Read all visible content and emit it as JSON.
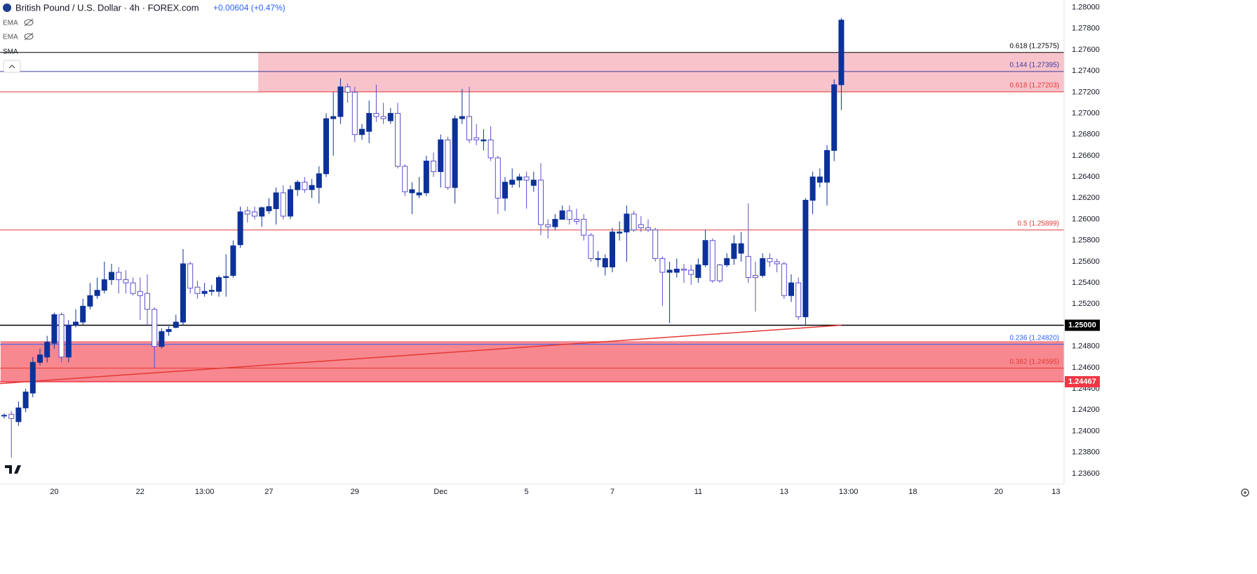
{
  "chart_data": {
    "type": "candlestick",
    "title": "British Pound / U.S. Dollar · 4h · FOREX.com",
    "change": "+0.00604 (+0.47%)",
    "indicators": [
      "EMA",
      "EMA",
      "SMA"
    ],
    "bull_color": "#0c3299",
    "bear_color": "#5b4fcf",
    "ylim": [
      1.235,
      1.2807
    ],
    "yticks": [
      {
        "value": 1.236,
        "label": "1.23600"
      },
      {
        "value": 1.238,
        "label": "1.23800"
      },
      {
        "value": 1.24,
        "label": "1.24000"
      },
      {
        "value": 1.242,
        "label": "1.24200"
      },
      {
        "value": 1.244,
        "label": "1.24400"
      },
      {
        "value": 1.246,
        "label": "1.24600"
      },
      {
        "value": 1.248,
        "label": "1.24800"
      },
      {
        "value": 1.25,
        "label": "1.25000"
      },
      {
        "value": 1.252,
        "label": "1.25200"
      },
      {
        "value": 1.254,
        "label": "1.25400"
      },
      {
        "value": 1.256,
        "label": "1.25600"
      },
      {
        "value": 1.258,
        "label": "1.25800"
      },
      {
        "value": 1.26,
        "label": "1.26000"
      },
      {
        "value": 1.262,
        "label": "1.26200"
      },
      {
        "value": 1.264,
        "label": "1.26400"
      },
      {
        "value": 1.266,
        "label": "1.26600"
      },
      {
        "value": 1.268,
        "label": "1.26800"
      },
      {
        "value": 1.27,
        "label": "1.27000"
      },
      {
        "value": 1.272,
        "label": "1.27200"
      },
      {
        "value": 1.274,
        "label": "1.27400"
      },
      {
        "value": 1.276,
        "label": "1.27600"
      },
      {
        "value": 1.278,
        "label": "1.27800"
      },
      {
        "value": 1.28,
        "label": "1.28000"
      }
    ],
    "categories": [
      null,
      null,
      null,
      null,
      null,
      null,
      null,
      "20",
      null,
      null,
      null,
      null,
      null,
      null,
      null,
      null,
      null,
      null,
      null,
      "22",
      null,
      null,
      null,
      null,
      null,
      null,
      null,
      null,
      "13:00",
      null,
      null,
      null,
      null,
      null,
      null,
      null,
      null,
      "27",
      null,
      null,
      null,
      null,
      null,
      null,
      null,
      null,
      null,
      null,
      null,
      "29",
      null,
      null,
      null,
      null,
      null,
      null,
      null,
      null,
      null,
      null,
      null,
      "Dec",
      null,
      null,
      null,
      null,
      null,
      null,
      null,
      null,
      null,
      null,
      null,
      "5",
      null,
      null,
      null,
      null,
      null,
      null,
      null,
      null,
      null,
      null,
      null,
      "7",
      null,
      null,
      null,
      null,
      null,
      null,
      null,
      null,
      null,
      null,
      null,
      "11",
      null,
      null,
      null,
      null,
      null,
      null,
      null,
      null,
      null,
      null,
      null,
      "13",
      null,
      null,
      null,
      null,
      null,
      null,
      null,
      null,
      "13:00",
      null,
      null,
      null,
      null,
      null,
      null,
      null,
      null,
      "18",
      null,
      null,
      null,
      null,
      null,
      null,
      null,
      null,
      null,
      null,
      null,
      "20",
      null,
      null,
      null,
      null,
      null,
      null,
      null,
      "13",
      null
    ],
    "candles": [
      [
        1.2415,
        1.2417,
        1.2412,
        1.2415
      ],
      [
        1.2416,
        1.2419,
        1.2375,
        1.2412
      ],
      [
        1.2409,
        1.2428,
        1.2405,
        1.2422
      ],
      [
        1.2422,
        1.244,
        1.2418,
        1.2437
      ],
      [
        1.2436,
        1.247,
        1.2432,
        1.2465
      ],
      [
        1.2465,
        1.2478,
        1.2462,
        1.2472
      ],
      [
        1.247,
        1.249,
        1.2465,
        1.2484
      ],
      [
        1.2483,
        1.2512,
        1.2478,
        1.251
      ],
      [
        1.251,
        1.2512,
        1.2465,
        1.247
      ],
      [
        1.247,
        1.2505,
        1.2465,
        1.25
      ],
      [
        1.25,
        1.2515,
        1.2498,
        1.2503
      ],
      [
        1.2503,
        1.2525,
        1.25,
        1.2518
      ],
      [
        1.2518,
        1.254,
        1.2515,
        1.2528
      ],
      [
        1.2528,
        1.2545,
        1.2525,
        1.2533
      ],
      [
        1.2533,
        1.256,
        1.253,
        1.2543
      ],
      [
        1.2543,
        1.2558,
        1.2538,
        1.255
      ],
      [
        1.255,
        1.2555,
        1.253,
        1.2543
      ],
      [
        1.2543,
        1.2552,
        1.253,
        1.254
      ],
      [
        1.254,
        1.2545,
        1.2528,
        1.253
      ],
      [
        1.2532,
        1.2545,
        1.2505,
        1.2528
      ],
      [
        1.253,
        1.2548,
        1.25,
        1.2515
      ],
      [
        1.2515,
        1.2517,
        1.246,
        1.248
      ],
      [
        1.248,
        1.2497,
        1.2478,
        1.2494
      ],
      [
        1.2494,
        1.2499,
        1.249,
        1.2496
      ],
      [
        1.2498,
        1.251,
        1.2497,
        1.2503
      ],
      [
        1.2503,
        1.2572,
        1.25,
        1.2558
      ],
      [
        1.2558,
        1.256,
        1.253,
        1.2535
      ],
      [
        1.2536,
        1.2542,
        1.2525,
        1.253
      ],
      [
        1.253,
        1.254,
        1.2527,
        1.2532
      ],
      [
        1.2532,
        1.2538,
        1.2528,
        1.2533
      ],
      [
        1.2532,
        1.2547,
        1.2527,
        1.2545
      ],
      [
        1.2545,
        1.2567,
        1.2527,
        1.2546
      ],
      [
        1.2547,
        1.258,
        1.2545,
        1.2575
      ],
      [
        1.2576,
        1.2612,
        1.2573,
        1.2607
      ],
      [
        1.2608,
        1.2612,
        1.2597,
        1.2605
      ],
      [
        1.2607,
        1.2612,
        1.26,
        1.2603
      ],
      [
        1.2603,
        1.2612,
        1.2593,
        1.2611
      ],
      [
        1.2608,
        1.262,
        1.2605,
        1.2612
      ],
      [
        1.261,
        1.263,
        1.2595,
        1.2625
      ],
      [
        1.2625,
        1.2632,
        1.26,
        1.2603
      ],
      [
        1.2603,
        1.2632,
        1.26,
        1.2628
      ],
      [
        1.2628,
        1.2637,
        1.2622,
        1.2635
      ],
      [
        1.2635,
        1.264,
        1.2625,
        1.2628
      ],
      [
        1.2628,
        1.2638,
        1.262,
        1.2632
      ],
      [
        1.263,
        1.265,
        1.2615,
        1.2643
      ],
      [
        1.2643,
        1.27,
        1.264,
        1.2695
      ],
      [
        1.2695,
        1.272,
        1.266,
        1.2697
      ],
      [
        1.2697,
        1.2733,
        1.269,
        1.2725
      ],
      [
        1.2725,
        1.2728,
        1.271,
        1.272
      ],
      [
        1.272,
        1.2725,
        1.2673,
        1.268
      ],
      [
        1.268,
        1.269,
        1.2675,
        1.2685
      ],
      [
        1.2683,
        1.2712,
        1.2672,
        1.27
      ],
      [
        1.27,
        1.2727,
        1.2692,
        1.2697
      ],
      [
        1.2697,
        1.271,
        1.269,
        1.2695
      ],
      [
        1.2693,
        1.2705,
        1.269,
        1.27
      ],
      [
        1.27,
        1.271,
        1.2648,
        1.265
      ],
      [
        1.265,
        1.2652,
        1.2622,
        1.2626
      ],
      [
        1.2625,
        1.2635,
        1.2605,
        1.2628
      ],
      [
        1.2623,
        1.264,
        1.262,
        1.2625
      ],
      [
        1.2625,
        1.266,
        1.2622,
        1.2655
      ],
      [
        1.2655,
        1.2663,
        1.264,
        1.2645
      ],
      [
        1.2645,
        1.268,
        1.263,
        1.2675
      ],
      [
        1.2675,
        1.2678,
        1.2628,
        1.263
      ],
      [
        1.263,
        1.2698,
        1.2615,
        1.2695
      ],
      [
        1.2695,
        1.2723,
        1.269,
        1.2697
      ],
      [
        1.2697,
        1.2725,
        1.2672,
        1.2675
      ],
      [
        1.2677,
        1.269,
        1.267,
        1.2675
      ],
      [
        1.2674,
        1.2685,
        1.2665,
        1.2675
      ],
      [
        1.2675,
        1.2688,
        1.2655,
        1.2658
      ],
      [
        1.2658,
        1.266,
        1.2605,
        1.262
      ],
      [
        1.262,
        1.264,
        1.2608,
        1.2635
      ],
      [
        1.2633,
        1.2648,
        1.263,
        1.2637
      ],
      [
        1.2637,
        1.2643,
        1.263,
        1.264
      ],
      [
        1.264,
        1.2645,
        1.261,
        1.2637
      ],
      [
        1.2632,
        1.2645,
        1.2626,
        1.2637
      ],
      [
        1.2637,
        1.2653,
        1.2585,
        1.2595
      ],
      [
        1.2595,
        1.26,
        1.2582,
        1.2593
      ],
      [
        1.2593,
        1.2605,
        1.259,
        1.26
      ],
      [
        1.26,
        1.2613,
        1.26,
        1.2608
      ],
      [
        1.2608,
        1.2613,
        1.2595,
        1.26
      ],
      [
        1.26,
        1.261,
        1.2595,
        1.2598
      ],
      [
        1.26,
        1.2605,
        1.258,
        1.2585
      ],
      [
        1.2585,
        1.2587,
        1.256,
        1.2563
      ],
      [
        1.2562,
        1.257,
        1.2555,
        1.2563
      ],
      [
        1.2555,
        1.2567,
        1.2547,
        1.2563
      ],
      [
        1.2555,
        1.2592,
        1.255,
        1.2588
      ],
      [
        1.2587,
        1.2598,
        1.258,
        1.2588
      ],
      [
        1.2588,
        1.2613,
        1.256,
        1.2605
      ],
      [
        1.2605,
        1.2608,
        1.2588,
        1.259
      ],
      [
        1.2595,
        1.2603,
        1.2588,
        1.2592
      ],
      [
        1.2592,
        1.26,
        1.2588,
        1.259
      ],
      [
        1.259,
        1.2592,
        1.256,
        1.2563
      ],
      [
        1.2563,
        1.2565,
        1.2518,
        1.255
      ],
      [
        1.255,
        1.256,
        1.2502,
        1.2552
      ],
      [
        1.255,
        1.2563,
        1.2545,
        1.2553
      ],
      [
        1.2553,
        1.2558,
        1.254,
        1.2552
      ],
      [
        1.2552,
        1.2557,
        1.2538,
        1.2548
      ],
      [
        1.2545,
        1.2563,
        1.254,
        1.2557
      ],
      [
        1.2557,
        1.259,
        1.2555,
        1.258
      ],
      [
        1.258,
        1.2582,
        1.254,
        1.2542
      ],
      [
        1.2557,
        1.2558,
        1.254,
        1.2542
      ],
      [
        1.2557,
        1.2568,
        1.2555,
        1.2563
      ],
      [
        1.2563,
        1.2585,
        1.2557,
        1.2577
      ],
      [
        1.2568,
        1.2588,
        1.256,
        1.2577
      ],
      [
        1.2565,
        1.2615,
        1.254,
        1.2545
      ],
      [
        1.2547,
        1.256,
        1.2513,
        1.2545
      ],
      [
        1.2547,
        1.2568,
        1.2545,
        1.2563
      ],
      [
        1.2563,
        1.2568,
        1.2555,
        1.256
      ],
      [
        1.256,
        1.2563,
        1.255,
        1.2558
      ],
      [
        1.2558,
        1.256,
        1.2525,
        1.2528
      ],
      [
        1.2528,
        1.2548,
        1.2522,
        1.254
      ],
      [
        1.254,
        1.2545,
        1.2505,
        1.2508
      ],
      [
        1.2508,
        1.262,
        1.25,
        1.2618
      ],
      [
        1.2618,
        1.2645,
        1.2605,
        1.264
      ],
      [
        1.2635,
        1.2648,
        1.263,
        1.264
      ],
      [
        1.2635,
        1.267,
        1.2613,
        1.2665
      ],
      [
        1.2665,
        1.2732,
        1.2655,
        1.2727
      ],
      [
        1.2727,
        1.279,
        1.2703,
        1.2788
      ],
      null,
      null,
      null,
      null,
      null,
      null,
      null,
      null,
      null,
      null,
      null,
      null,
      null,
      null,
      null,
      null,
      null,
      null,
      null,
      null,
      null,
      null,
      null,
      null,
      null,
      null,
      null,
      null,
      null,
      null,
      null
    ],
    "zones": [
      {
        "from": 1.27203,
        "to": 1.27575,
        "start": 36,
        "color": "#f8c3cb"
      },
      {
        "from": 1.24467,
        "to": 1.2485,
        "start": 0,
        "color": "#f7888f"
      }
    ],
    "levels": [
      {
        "value": 1.27575,
        "label": "0.618 (1.27575)",
        "color": "#000000"
      },
      {
        "value": 1.27395,
        "label": "0.144 (1.27395)",
        "color": "#3b3b9e"
      },
      {
        "value": 1.27203,
        "label": "0.618 (1.27203)",
        "color": "#e53935"
      },
      {
        "value": 1.25899,
        "label": "0.5 (1.25899)",
        "color": "#e53935"
      },
      {
        "value": 1.25,
        "tag": "1.25000",
        "color": "#000000"
      },
      {
        "value": 1.2482,
        "label": "0.236 (1.24820)",
        "color": "#2962ff"
      },
      {
        "value": 1.24595,
        "label": "0.382 (1.24595)",
        "color": "#e53935"
      },
      {
        "value": 1.24467,
        "tag": "1.24467",
        "color": "#f23645"
      }
    ],
    "trendline": {
      "from": [
        0,
        1.2445
      ],
      "to": [
        117,
        1.25
      ],
      "color": "#e53935"
    }
  }
}
